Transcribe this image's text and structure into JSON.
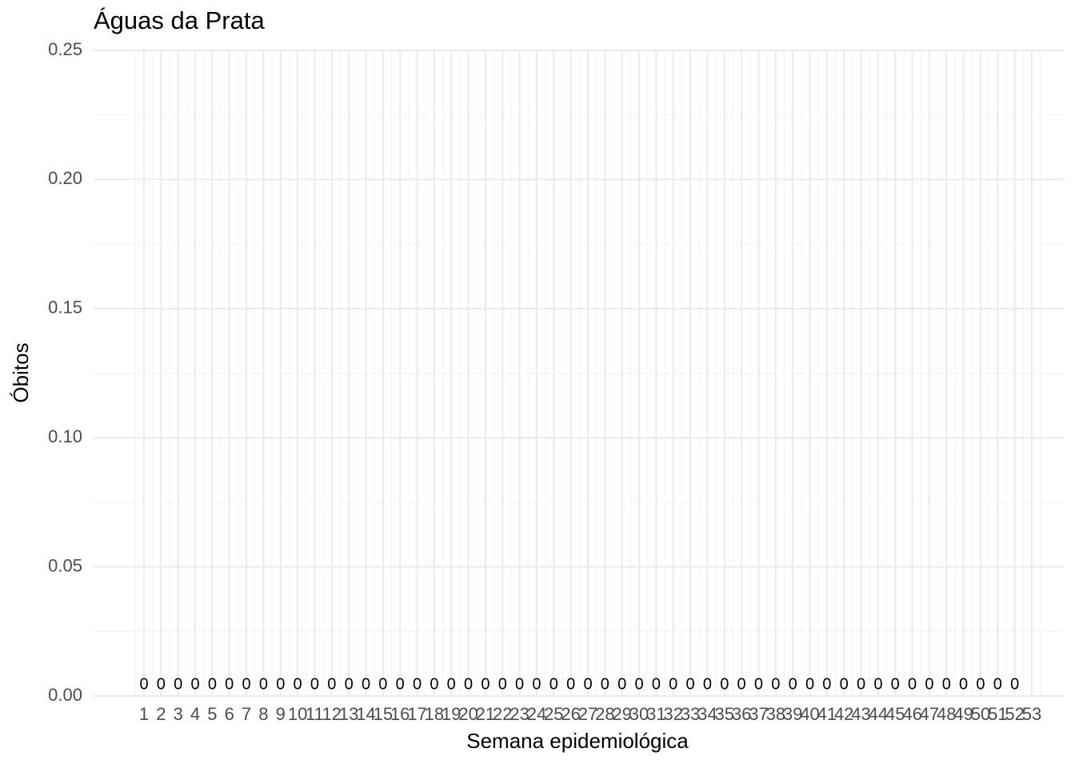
{
  "chart_data": {
    "type": "bar",
    "title": "Águas da Prata",
    "x_label": "Semana epidemiológica",
    "y_label": "Óbitos",
    "categories": [
      "1",
      "2",
      "3",
      "4",
      "5",
      "6",
      "7",
      "8",
      "9",
      "10",
      "11",
      "12",
      "13",
      "14",
      "15",
      "16",
      "17",
      "18",
      "19",
      "20",
      "21",
      "22",
      "23",
      "24",
      "25",
      "26",
      "27",
      "28",
      "29",
      "30",
      "31",
      "32",
      "33",
      "34",
      "35",
      "36",
      "37",
      "38",
      "39",
      "40",
      "41",
      "42",
      "43",
      "44",
      "45",
      "46",
      "47",
      "48",
      "49",
      "50",
      "51",
      "52",
      "53"
    ],
    "values": [
      0,
      0,
      0,
      0,
      0,
      0,
      0,
      0,
      0,
      0,
      0,
      0,
      0,
      0,
      0,
      0,
      0,
      0,
      0,
      0,
      0,
      0,
      0,
      0,
      0,
      0,
      0,
      0,
      0,
      0,
      0,
      0,
      0,
      0,
      0,
      0,
      0,
      0,
      0,
      0,
      0,
      0,
      0,
      0,
      0,
      0,
      0,
      0,
      0,
      0,
      0,
      0,
      null
    ],
    "color": "#595959",
    "ylim": [
      0,
      0.25
    ],
    "yticks": [
      {
        "value": 0,
        "label": "0.00"
      },
      0.05,
      {
        "value": 0.1,
        "label": "0.10"
      },
      0.15,
      {
        "value": 0.2,
        "label": "0.20"
      },
      0.25
    ],
    "grid": true
  }
}
